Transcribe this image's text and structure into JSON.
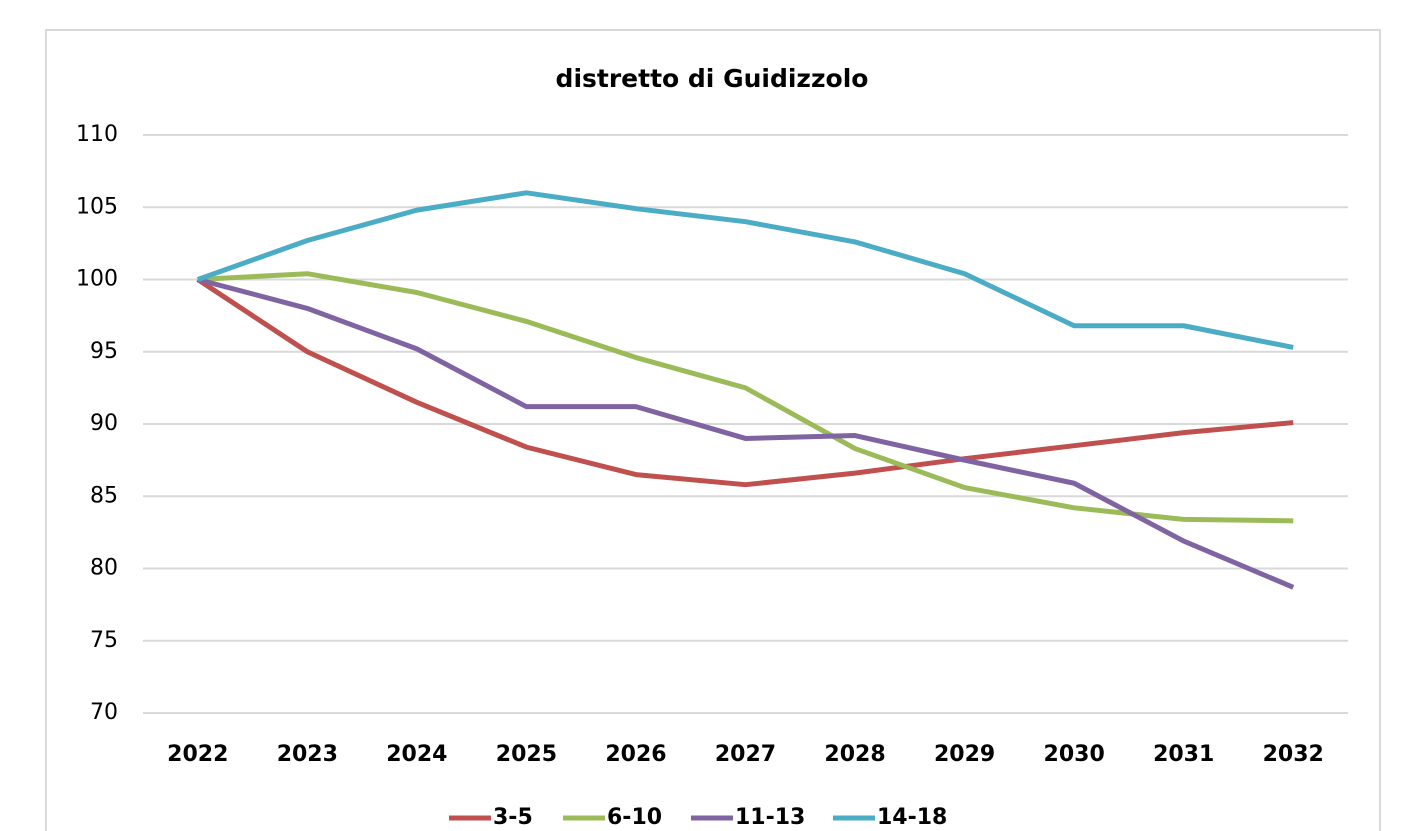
{
  "chart_data": {
    "type": "line",
    "title": "distretto di Guidizzolo",
    "categories": [
      "2022",
      "2023",
      "2024",
      "2025",
      "2026",
      "2027",
      "2028",
      "2029",
      "2030",
      "2031",
      "2032"
    ],
    "series": [
      {
        "name": "3-5",
        "color": "#c0504d",
        "values": [
          100,
          95.0,
          91.5,
          88.4,
          86.5,
          85.8,
          86.6,
          87.6,
          88.5,
          89.4,
          90.1
        ]
      },
      {
        "name": "6-10",
        "color": "#9bbb59",
        "values": [
          100,
          100.4,
          99.1,
          97.1,
          94.6,
          92.5,
          88.3,
          85.6,
          84.2,
          83.4,
          83.3
        ]
      },
      {
        "name": "11-13",
        "color": "#8064a2",
        "values": [
          100,
          98.0,
          95.2,
          91.2,
          91.2,
          89.0,
          89.2,
          87.5,
          85.9,
          81.9,
          78.7
        ]
      },
      {
        "name": "14-18",
        "color": "#4bacc6",
        "values": [
          100,
          102.7,
          104.8,
          106.0,
          104.9,
          104.0,
          102.6,
          100.4,
          96.8,
          96.8,
          95.3
        ]
      }
    ],
    "ylim": [
      70,
      110
    ],
    "yticks": [
      70,
      75,
      80,
      85,
      90,
      95,
      100,
      105,
      110
    ],
    "grid": true,
    "legend": "bottom"
  }
}
